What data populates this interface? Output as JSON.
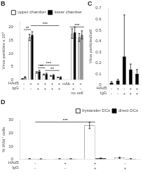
{
  "chart_data": [
    {
      "type": "bar",
      "title": "B",
      "categories": [
        [
          "-",
          "-"
        ],
        [
          "+",
          "-"
        ],
        [
          "+",
          "+"
        ],
        [
          "+",
          "+"
        ],
        [
          "+",
          "+"
        ],
        [
          "+",
          "+"
        ],
        "nAb",
        [
          "+",
          "+"
        ],
        [
          "+",
          "-"
        ]
      ],
      "series": [
        {
          "name": "upper chamber",
          "color": "white",
          "colors": [
            "#cccccc",
            "white",
            "white",
            "white",
            "white",
            "white",
            null,
            "white",
            "#cccccc"
          ],
          "values": [
            0.4,
            16.0,
            2.8,
            2.0,
            1.5,
            0.9,
            null,
            17.5,
            16.0
          ],
          "errors": [
            0.1,
            1.2,
            0.3,
            0.2,
            0.15,
            0.1,
            null,
            1.8,
            1.5
          ]
        },
        {
          "name": "lower chamber",
          "color": "black",
          "colors": [
            "#999999",
            "black",
            "black",
            "black",
            "black",
            "black",
            null,
            "black",
            "#999999"
          ],
          "values": [
            1.0,
            17.0,
            3.2,
            2.2,
            1.8,
            1.0,
            null,
            18.0,
            17.0
          ],
          "errors": [
            0.2,
            1.2,
            0.4,
            0.3,
            0.2,
            0.15,
            null,
            2.0,
            1.5
          ]
        }
      ],
      "ylabel": "Virus particles x 10⁵",
      "ylim": [
        0,
        22
      ],
      "yticks": [
        0,
        5,
        10,
        15,
        20
      ],
      "grid": false,
      "legend": "upper right",
      "annotations": [
        {
          "text": "HAd5"
        },
        {
          "text": "IgG"
        },
        {
          "text": "no cell",
          "x": 7.5
        },
        {
          "text": "**",
          "x": [
            0,
            1
          ],
          "y": 19.0
        },
        {
          "text": "***",
          "x": [
            1,
            5
          ],
          "y": 20.5
        },
        {
          "text": "***",
          "x": [
            6.5,
            8.5
          ],
          "y": 20.0
        },
        {
          "text": "***",
          "x": [
            2,
            5
          ],
          "y": 5.5
        },
        {
          "text": "**",
          "x": [
            2,
            3
          ],
          "y": 4.5
        },
        {
          "text": "**",
          "x": [
            3,
            5
          ],
          "y": 3.5
        }
      ]
    },
    {
      "type": "bar",
      "title": "C",
      "categories": [
        [
          "-",
          "-"
        ],
        [
          "+",
          "-"
        ],
        [
          "-",
          "+"
        ],
        [
          "+",
          "+"
        ],
        [
          "+",
          "+"
        ]
      ],
      "values": [
        0.02,
        0.04,
        0.26,
        0.14,
        0.1
      ],
      "errors": [
        0.01,
        0.01,
        0.38,
        0.05,
        0.04
      ],
      "color": "black",
      "ylabel": "Virus particles/cell",
      "ylim": [
        0,
        0.7
      ],
      "yticks": [
        0,
        0.1,
        0.2,
        0.3,
        0.4,
        0.5,
        0.6,
        0.7
      ],
      "grid": false,
      "annotations": [
        {
          "text": "HAd5"
        },
        {
          "text": "IgG"
        }
      ]
    },
    {
      "type": "bar",
      "title": "D",
      "categories": [
        [
          "-",
          "-"
        ],
        [
          "+",
          "-"
        ],
        [
          "+",
          "+"
        ],
        [
          "-",
          "+"
        ]
      ],
      "series": [
        {
          "name": "bystander DCs",
          "color": "white",
          "values": [
            0.4,
            0.4,
            26.0,
            1.2
          ],
          "errors": [
            0.15,
            0.15,
            2.5,
            0.5
          ]
        },
        {
          "name": "direct DCs",
          "color": "black",
          "values": [
            0.3,
            0.4,
            0.8,
            0.4
          ],
          "errors": [
            0.1,
            0.1,
            0.3,
            0.1
          ]
        }
      ],
      "ylabel": "% lA6d⁺ cells",
      "ylim": [
        0,
        30
      ],
      "yticks": [
        0,
        10,
        20,
        30
      ],
      "grid": false,
      "legend": "upper right",
      "annotations": [
        {
          "text": "HAd5"
        },
        {
          "text": "IgG"
        },
        {
          "text": "***",
          "x": [
            0,
            2
          ],
          "y": 28.5
        }
      ]
    }
  ]
}
